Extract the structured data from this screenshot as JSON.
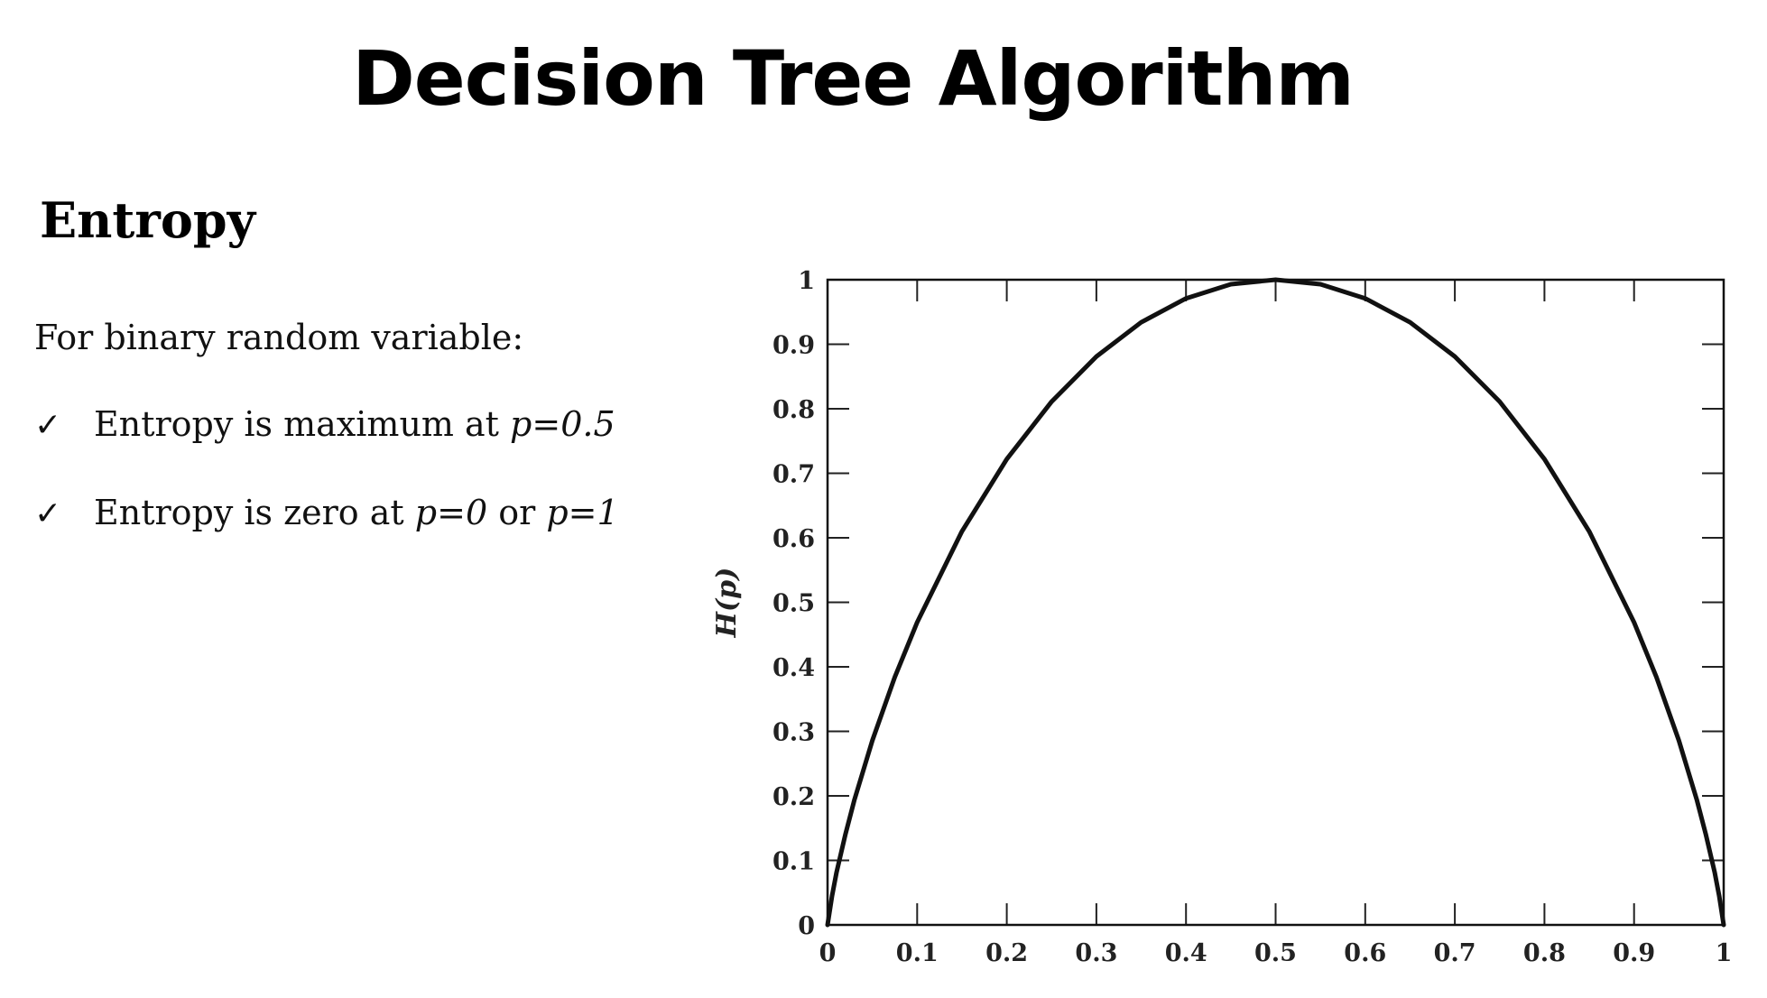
{
  "slide": {
    "title": "Decision Tree Algorithm",
    "section_heading": "Entropy",
    "intro": "For binary random variable:",
    "bullets": [
      {
        "icon": "check-icon",
        "symbol": "✓",
        "text": "Entropy is maximum at ",
        "expr": "p=0.5",
        "text2": "",
        "expr2": ""
      },
      {
        "icon": "check-icon",
        "symbol": "✓",
        "text": "Entropy is zero at ",
        "expr": "p=0",
        "text2": " or ",
        "expr2": "p=1"
      }
    ]
  },
  "chart_data": {
    "type": "line",
    "title": "",
    "xlabel": "",
    "ylabel": "H(p)",
    "xlim": [
      0,
      1
    ],
    "ylim": [
      0,
      1
    ],
    "grid": false,
    "x_ticks": [
      "0",
      "0.1",
      "0.2",
      "0.3",
      "0.4",
      "0.5",
      "0.6",
      "0.7",
      "0.8",
      "0.9",
      "1"
    ],
    "y_ticks": [
      "0",
      "0.1",
      "0.2",
      "0.3",
      "0.4",
      "0.5",
      "0.6",
      "0.7",
      "0.8",
      "0.9",
      "1"
    ],
    "series": [
      {
        "x": [
          0,
          0.005,
          0.01,
          0.02,
          0.03,
          0.05,
          0.075,
          0.1,
          0.15,
          0.2,
          0.25,
          0.3,
          0.35,
          0.4,
          0.45,
          0.5,
          0.55,
          0.6,
          0.65,
          0.7,
          0.75,
          0.8,
          0.85,
          0.9,
          0.925,
          0.95,
          0.97,
          0.98,
          0.99,
          0.995,
          1
        ],
        "y": [
          0,
          0.045,
          0.081,
          0.141,
          0.194,
          0.286,
          0.384,
          0.469,
          0.61,
          0.722,
          0.811,
          0.881,
          0.934,
          0.971,
          0.993,
          1,
          0.993,
          0.971,
          0.934,
          0.881,
          0.811,
          0.722,
          0.61,
          0.469,
          0.384,
          0.286,
          0.194,
          0.141,
          0.081,
          0.045,
          0
        ]
      }
    ],
    "line_color": "#111111"
  }
}
